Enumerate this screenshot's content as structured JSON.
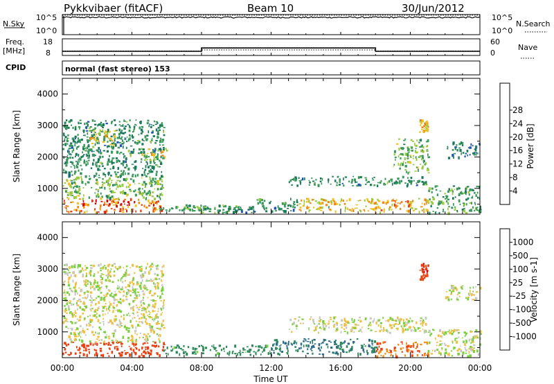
{
  "header": {
    "station": "Pykkvibaer (fitACF)",
    "beam": "Beam 10",
    "date": "30/Jun/2012"
  },
  "panels": {
    "nsky_label": "N.Sky",
    "nsky_ticks": [
      "10^5",
      "10^0"
    ],
    "nsearch_label": "N.Search",
    "nsearch_ticks": [
      "10^5",
      "10^0"
    ],
    "freq_label_1": "Freq.",
    "freq_label_2": "[MHz]",
    "freq_ticks": [
      "18",
      "8"
    ],
    "nave_label": "Nave",
    "nave_ticks": [
      "60",
      "0"
    ],
    "cpid_label": "CPID",
    "cpid_text": "normal (fast stereo) 153"
  },
  "axes": {
    "ylabel": "Slant Range [km]",
    "xlabel": "Time UT",
    "x_ticks": [
      "00:00",
      "04:00",
      "08:00",
      "12:00",
      "16:00",
      "20:00",
      "00:00"
    ],
    "y_ticks": [
      "1000",
      "2000",
      "3000",
      "4000"
    ]
  },
  "power_scale": {
    "label": "Power [dB]",
    "ticks": [
      "4",
      "8",
      "12",
      "16",
      "20",
      "24",
      "28"
    ],
    "colors": [
      "#0000ff",
      "#2050c0",
      "#1b7a5a",
      "#3a9a5a",
      "#9acb3c",
      "#f0c020",
      "#f08a10",
      "#e84010",
      "#e00000"
    ]
  },
  "velocity_scale": {
    "label": "Velocity [m s-1]",
    "ticks": [
      "1000",
      "500",
      "100",
      "25",
      "-25",
      "-100",
      "-500",
      "-1000"
    ],
    "colors": [
      "#2040c0",
      "#2a6a8a",
      "#2e8a5a",
      "#7bd040",
      "#c8c8c0",
      "#f0c040",
      "#f08a10",
      "#e84010",
      "#e00000"
    ]
  },
  "chart_data": {
    "type": "heatmap",
    "x_range_hours": [
      0,
      24
    ],
    "y_range_km": [
      180,
      4500
    ],
    "power_region_values_db": [
      {
        "t": [
          0.0,
          5.8
        ],
        "r": [
          250,
          700
        ],
        "db": 26
      },
      {
        "t": [
          0.0,
          5.8
        ],
        "r": [
          700,
          1400
        ],
        "db": 14
      },
      {
        "t": [
          0.0,
          5.8
        ],
        "r": [
          1400,
          3200
        ],
        "db": 10
      },
      {
        "t": [
          1.5,
          3.0
        ],
        "r": [
          2400,
          2900
        ],
        "db": 20
      },
      {
        "t": [
          4.5,
          6.0
        ],
        "r": [
          1900,
          2300
        ],
        "db": 18
      },
      {
        "t": [
          5.5,
          10.0
        ],
        "r": [
          250,
          500
        ],
        "db": 12
      },
      {
        "t": [
          9.5,
          11.0
        ],
        "r": [
          250,
          450
        ],
        "db": 8
      },
      {
        "t": [
          11.0,
          13.5
        ],
        "r": [
          300,
          700
        ],
        "db": 10
      },
      {
        "t": [
          13.5,
          18.0
        ],
        "r": [
          300,
          700
        ],
        "db": 20
      },
      {
        "t": [
          13.0,
          21.0
        ],
        "r": [
          1100,
          1400
        ],
        "db": 10
      },
      {
        "t": [
          18.0,
          21.0
        ],
        "r": [
          250,
          700
        ],
        "db": 22
      },
      {
        "t": [
          19.0,
          21.0
        ],
        "r": [
          1500,
          2600
        ],
        "db": 14
      },
      {
        "t": [
          20.5,
          21.0
        ],
        "r": [
          2800,
          3200
        ],
        "db": 22
      },
      {
        "t": [
          21.0,
          24.0
        ],
        "r": [
          250,
          1100
        ],
        "db": 12
      },
      {
        "t": [
          22.0,
          24.0
        ],
        "r": [
          2000,
          2500
        ],
        "db": 8
      }
    ],
    "velocity_region_values_ms": [
      {
        "t": [
          0.0,
          5.8
        ],
        "r": [
          250,
          700
        ],
        "v": -500
      },
      {
        "t": [
          0.0,
          5.8
        ],
        "r": [
          700,
          3200
        ],
        "v": 0
      },
      {
        "t": [
          5.8,
          12.0
        ],
        "r": [
          300,
          600
        ],
        "v": 100
      },
      {
        "t": [
          12.0,
          18.0
        ],
        "r": [
          300,
          800
        ],
        "v": 300
      },
      {
        "t": [
          13.0,
          21.0
        ],
        "r": [
          1000,
          1500
        ],
        "v": 0
      },
      {
        "t": [
          18.0,
          21.0
        ],
        "r": [
          250,
          700
        ],
        "v": -300
      },
      {
        "t": [
          20.5,
          21.0
        ],
        "r": [
          2700,
          3200
        ],
        "v": -700
      },
      {
        "t": [
          21.0,
          24.0
        ],
        "r": [
          250,
          1100
        ],
        "v": 0
      },
      {
        "t": [
          22.0,
          24.0
        ],
        "r": [
          2000,
          2500
        ],
        "v": 0
      }
    ],
    "frequency_mhz": [
      {
        "t": [
          0,
          8
        ],
        "v": 10.5
      },
      {
        "t": [
          8,
          18
        ],
        "v": 12.5
      },
      {
        "t": [
          18,
          24
        ],
        "v": 10.5
      }
    ],
    "nave": [
      {
        "t": [
          0,
          8
        ],
        "v": 16
      },
      {
        "t": [
          8,
          18
        ],
        "v": 20
      },
      {
        "t": [
          18,
          24
        ],
        "v": 16
      }
    ],
    "nsky_level_log10": 4.3
  }
}
